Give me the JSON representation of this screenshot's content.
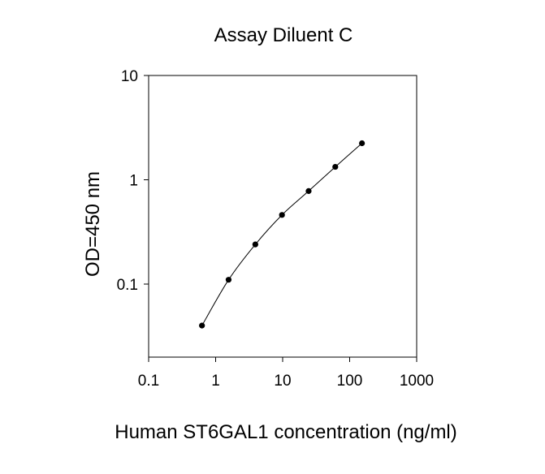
{
  "chart_data": {
    "type": "line",
    "title": "Assay Diluent C",
    "xlabel": "Human ST6GAL1 concentration (ng/ml)",
    "ylabel": "OD=450 nm",
    "x_scale": "log",
    "y_scale": "log",
    "xlim": [
      0.1,
      1000
    ],
    "ylim": [
      0.02,
      10
    ],
    "x_ticks": [
      0.1,
      1,
      10,
      100,
      1000
    ],
    "x_tick_labels": [
      "0.1",
      "1",
      "10",
      "100",
      "1000"
    ],
    "y_ticks": [
      0.1,
      1,
      10
    ],
    "y_tick_labels": [
      "0.1",
      "1",
      "10"
    ],
    "grid": false,
    "legend": "none",
    "series": [
      {
        "x": [
          0.625,
          1.56,
          3.91,
          9.77,
          24.4,
          61.0,
          152.6
        ],
        "y": [
          0.04,
          0.11,
          0.24,
          0.46,
          0.78,
          1.33,
          2.24
        ],
        "color": "#000000",
        "marker": "circle"
      }
    ]
  }
}
